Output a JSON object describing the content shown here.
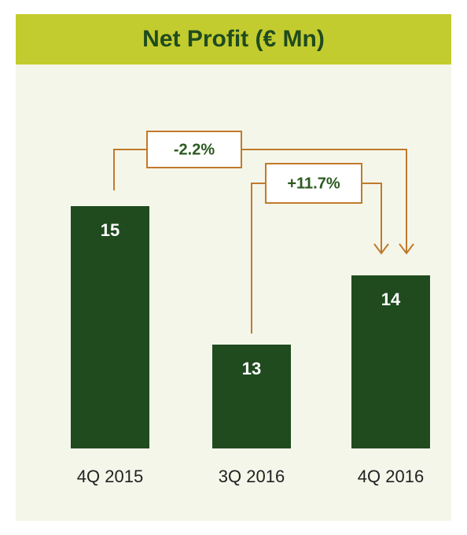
{
  "chart_data": {
    "type": "bar",
    "title": "Net Profit (€ Mn)",
    "categories": [
      "4Q 2015",
      "3Q 2016",
      "4Q 2016"
    ],
    "values": [
      15,
      13,
      14
    ],
    "color": "#1f4b1f",
    "annotations": [
      "-2.2%",
      "+11.7%"
    ]
  }
}
